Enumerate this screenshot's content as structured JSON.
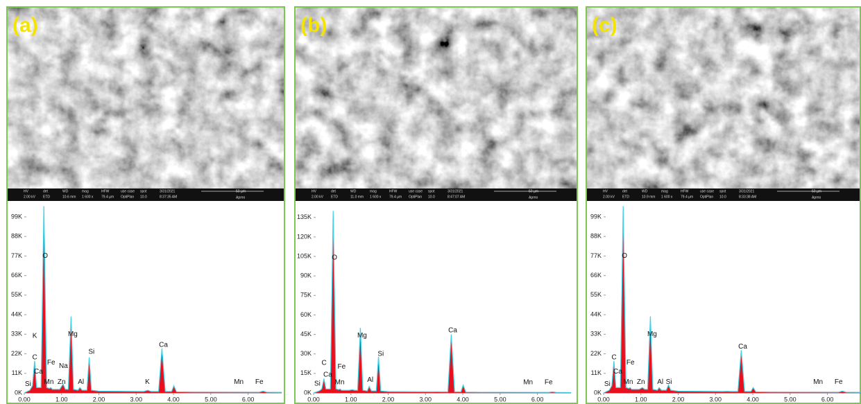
{
  "panels": [
    {
      "label": "(a)",
      "info": [
        "HV",
        "2.00 kV",
        "det",
        "ETD",
        "WD",
        "10.6 mm",
        "mag",
        "1 600 x",
        "HFW",
        "79.4 µm",
        "use case",
        "OptiPlan",
        "spot",
        "10.0",
        "3/31/2021",
        "8:37:35 AM",
        "50 µm",
        "Apreo"
      ]
    },
    {
      "label": "(b)",
      "info": [
        "HV",
        "2.00 kV",
        "det",
        "ETD",
        "WD",
        "11.0 mm",
        "mag",
        "1 600 x",
        "HFW",
        "79.4 µm",
        "use case",
        "OptiPlan",
        "spot",
        "10.0",
        "3/31/2021",
        "8:47:07 AM",
        "50 µm",
        "Apreo"
      ]
    },
    {
      "label": "(c)",
      "info": [
        "HV",
        "2.00 kV",
        "det",
        "ETD",
        "WD",
        "10.9 mm",
        "mag",
        "1 600 x",
        "HFW",
        "79.4 µm",
        "use case",
        "OptiPlan",
        "spot",
        "10.0",
        "3/31/2021",
        "8:33:38 AM",
        "50 µm",
        "Apreo"
      ]
    }
  ],
  "chart_data": [
    {
      "type": "line",
      "fill_color": "#e8101c",
      "line_color": "#3fd0e8",
      "xlim": [
        0,
        6.9
      ],
      "ylim": [
        0,
        106000
      ],
      "xticks": [
        {
          "value": 0,
          "label": "0.00"
        },
        {
          "value": 1,
          "label": "1.00"
        },
        {
          "value": 2,
          "label": "2.00"
        },
        {
          "value": 3,
          "label": "3.00"
        },
        {
          "value": 4,
          "label": "4.00"
        },
        {
          "value": 5,
          "label": "5.00"
        },
        {
          "value": 6,
          "label": "6.00"
        }
      ],
      "yticks": [
        {
          "value": 0,
          "label": "0K"
        },
        {
          "value": 11000,
          "label": "11K"
        },
        {
          "value": 22000,
          "label": "22K"
        },
        {
          "value": 33000,
          "label": "33K"
        },
        {
          "value": 44000,
          "label": "44K"
        },
        {
          "value": 55000,
          "label": "55K"
        },
        {
          "value": 66000,
          "label": "66K"
        },
        {
          "value": 77000,
          "label": "77K"
        },
        {
          "value": 88000,
          "label": "88K"
        },
        {
          "value": 99000,
          "label": "99K"
        }
      ],
      "x": [
        0.0,
        0.15,
        0.22,
        0.277,
        0.33,
        0.45,
        0.525,
        0.6,
        0.68,
        0.71,
        0.75,
        0.95,
        1.04,
        1.1,
        1.18,
        1.254,
        1.32,
        1.44,
        1.49,
        1.55,
        1.68,
        1.74,
        1.8,
        2.0,
        3.2,
        3.31,
        3.4,
        3.6,
        3.69,
        3.78,
        3.95,
        4.01,
        4.08,
        4.5,
        6.3,
        6.4,
        6.5,
        6.9
      ],
      "series": [
        {
          "values": [
            0,
            1500,
            4000,
            17000,
            3000,
            3000,
            90000,
            3000,
            2500,
            3000,
            2000,
            2000,
            5000,
            2000,
            2000,
            36000,
            2000,
            1500,
            3000,
            1500,
            1500,
            19000,
            1500,
            1000,
            800,
            1500,
            800,
            800,
            24000,
            800,
            800,
            4000,
            600,
            500,
            400,
            1000,
            400,
            300
          ]
        },
        {
          "values": [
            0,
            1500,
            4000,
            18000,
            3000,
            3000,
            105000,
            3000,
            2500,
            3000,
            2000,
            2000,
            5000,
            2000,
            2000,
            43000,
            2000,
            1500,
            3000,
            1500,
            1500,
            20000,
            1500,
            1000,
            800,
            1500,
            800,
            800,
            25000,
            800,
            800,
            4000,
            600,
            500,
            400,
            1000,
            400,
            300
          ]
        }
      ],
      "annotations": [
        {
          "text": "Si",
          "x": 0.1,
          "y": 5000
        },
        {
          "text": "C",
          "x": 0.28,
          "y": 20000
        },
        {
          "text": "K",
          "x": 0.28,
          "y": 32000
        },
        {
          "text": "Ca",
          "x": 0.38,
          "y": 12000
        },
        {
          "text": "O",
          "x": 0.56,
          "y": 77000
        },
        {
          "text": "Fe",
          "x": 0.72,
          "y": 17000
        },
        {
          "text": "Mn",
          "x": 0.66,
          "y": 6000
        },
        {
          "text": "Na",
          "x": 1.05,
          "y": 15000
        },
        {
          "text": "Zn",
          "x": 1.0,
          "y": 6000
        },
        {
          "text": "Mg",
          "x": 1.3,
          "y": 33000
        },
        {
          "text": "Al",
          "x": 1.52,
          "y": 6000
        },
        {
          "text": "Si",
          "x": 1.8,
          "y": 23000
        },
        {
          "text": "K",
          "x": 3.3,
          "y": 6000
        },
        {
          "text": "Ca",
          "x": 3.73,
          "y": 27000
        },
        {
          "text": "Mn",
          "x": 5.75,
          "y": 6000
        },
        {
          "text": "Fe",
          "x": 6.3,
          "y": 6000
        }
      ]
    },
    {
      "type": "line",
      "fill_color": "#e8101c",
      "line_color": "#3fd0e8",
      "xlim": [
        0,
        6.9
      ],
      "ylim": [
        0,
        145000
      ],
      "xticks": [
        {
          "value": 0,
          "label": "0.00"
        },
        {
          "value": 1,
          "label": "1.00"
        },
        {
          "value": 2,
          "label": "2.00"
        },
        {
          "value": 3,
          "label": "3.00"
        },
        {
          "value": 4,
          "label": "4.00"
        },
        {
          "value": 5,
          "label": "5.00"
        },
        {
          "value": 6,
          "label": "6.00"
        }
      ],
      "yticks": [
        {
          "value": 0,
          "label": "0K"
        },
        {
          "value": 15000,
          "label": "15K"
        },
        {
          "value": 30000,
          "label": "30K"
        },
        {
          "value": 45000,
          "label": "45K"
        },
        {
          "value": 60000,
          "label": "60K"
        },
        {
          "value": 75000,
          "label": "75K"
        },
        {
          "value": 90000,
          "label": "90K"
        },
        {
          "value": 105000,
          "label": "105K"
        },
        {
          "value": 120000,
          "label": "120K"
        },
        {
          "value": 135000,
          "label": "135K"
        }
      ],
      "x": [
        0.0,
        0.15,
        0.22,
        0.277,
        0.33,
        0.45,
        0.525,
        0.6,
        0.68,
        0.71,
        0.75,
        0.95,
        1.04,
        1.1,
        1.18,
        1.254,
        1.32,
        1.44,
        1.49,
        1.55,
        1.68,
        1.74,
        1.8,
        2.0,
        3.2,
        3.31,
        3.4,
        3.6,
        3.69,
        3.78,
        3.95,
        4.01,
        4.08,
        4.5,
        6.3,
        6.4,
        6.5,
        6.9
      ],
      "series": [
        {
          "values": [
            0,
            1500,
            3000,
            10000,
            3000,
            3000,
            120000,
            3000,
            2500,
            3000,
            2000,
            2000,
            2500,
            2000,
            2000,
            48000,
            2000,
            1500,
            5000,
            1500,
            1500,
            27000,
            1500,
            1000,
            800,
            900,
            800,
            800,
            43000,
            800,
            800,
            6000,
            600,
            500,
            400,
            800,
            400,
            300
          ]
        },
        {
          "values": [
            0,
            1500,
            3000,
            11000,
            3000,
            3000,
            140000,
            3000,
            2500,
            3000,
            2000,
            2000,
            2500,
            2000,
            2000,
            50000,
            2000,
            1500,
            5000,
            1500,
            1500,
            28000,
            1500,
            1000,
            800,
            900,
            800,
            800,
            45000,
            800,
            800,
            6000,
            600,
            500,
            400,
            800,
            400,
            300
          ]
        }
      ],
      "annotations": [
        {
          "text": "Si",
          "x": 0.1,
          "y": 7000
        },
        {
          "text": "C",
          "x": 0.28,
          "y": 23000
        },
        {
          "text": "Ca",
          "x": 0.38,
          "y": 14000
        },
        {
          "text": "O",
          "x": 0.56,
          "y": 104000
        },
        {
          "text": "Fe",
          "x": 0.75,
          "y": 20000
        },
        {
          "text": "Mn",
          "x": 0.7,
          "y": 8000
        },
        {
          "text": "Mg",
          "x": 1.3,
          "y": 44000
        },
        {
          "text": "Al",
          "x": 1.52,
          "y": 10000
        },
        {
          "text": "Si",
          "x": 1.8,
          "y": 30000
        },
        {
          "text": "Ca",
          "x": 3.73,
          "y": 48000
        },
        {
          "text": "Mn",
          "x": 5.75,
          "y": 8000
        },
        {
          "text": "Fe",
          "x": 6.3,
          "y": 8000
        }
      ]
    },
    {
      "type": "line",
      "fill_color": "#e8101c",
      "line_color": "#3fd0e8",
      "xlim": [
        0,
        6.9
      ],
      "ylim": [
        0,
        106000
      ],
      "xticks": [
        {
          "value": 0,
          "label": "0.00"
        },
        {
          "value": 1,
          "label": "1.00"
        },
        {
          "value": 2,
          "label": "2.00"
        },
        {
          "value": 3,
          "label": "3.00"
        },
        {
          "value": 4,
          "label": "4.00"
        },
        {
          "value": 5,
          "label": "5.00"
        },
        {
          "value": 6,
          "label": "6.00"
        }
      ],
      "yticks": [
        {
          "value": 0,
          "label": "0K"
        },
        {
          "value": 11000,
          "label": "11K"
        },
        {
          "value": 22000,
          "label": "22K"
        },
        {
          "value": 33000,
          "label": "33K"
        },
        {
          "value": 44000,
          "label": "44K"
        },
        {
          "value": 55000,
          "label": "55K"
        },
        {
          "value": 66000,
          "label": "66K"
        },
        {
          "value": 77000,
          "label": "77K"
        },
        {
          "value": 88000,
          "label": "88K"
        },
        {
          "value": 99000,
          "label": "99K"
        }
      ],
      "x": [
        0.0,
        0.15,
        0.22,
        0.277,
        0.33,
        0.45,
        0.525,
        0.6,
        0.68,
        0.71,
        0.75,
        0.95,
        1.04,
        1.1,
        1.18,
        1.254,
        1.32,
        1.44,
        1.49,
        1.55,
        1.68,
        1.74,
        1.8,
        2.0,
        3.2,
        3.31,
        3.4,
        3.6,
        3.69,
        3.78,
        3.95,
        4.01,
        4.08,
        4.5,
        6.3,
        6.4,
        6.5,
        6.9
      ],
      "series": [
        {
          "values": [
            0,
            1500,
            4000,
            17000,
            3000,
            3000,
            90000,
            3000,
            2500,
            3000,
            2000,
            2000,
            3000,
            2000,
            2000,
            36000,
            2000,
            1500,
            3000,
            1500,
            1500,
            4000,
            1500,
            1000,
            800,
            900,
            800,
            800,
            23000,
            800,
            800,
            3000,
            600,
            500,
            400,
            1000,
            400,
            300
          ]
        },
        {
          "values": [
            0,
            1500,
            4000,
            18000,
            3000,
            3000,
            105000,
            3000,
            2500,
            3000,
            2000,
            2000,
            3000,
            2000,
            2000,
            43000,
            2000,
            1500,
            3000,
            1500,
            1500,
            4500,
            1500,
            1000,
            800,
            900,
            800,
            800,
            24000,
            800,
            800,
            3000,
            600,
            500,
            400,
            1000,
            400,
            300
          ]
        }
      ],
      "annotations": [
        {
          "text": "Si",
          "x": 0.1,
          "y": 5000
        },
        {
          "text": "C",
          "x": 0.28,
          "y": 20000
        },
        {
          "text": "Ca",
          "x": 0.38,
          "y": 12000
        },
        {
          "text": "O",
          "x": 0.56,
          "y": 77000
        },
        {
          "text": "Fe",
          "x": 0.72,
          "y": 17000
        },
        {
          "text": "Mn",
          "x": 0.66,
          "y": 6000
        },
        {
          "text": "Zn",
          "x": 1.0,
          "y": 6000
        },
        {
          "text": "Mg",
          "x": 1.3,
          "y": 33000
        },
        {
          "text": "Al",
          "x": 1.52,
          "y": 6000
        },
        {
          "text": "Si",
          "x": 1.75,
          "y": 6000
        },
        {
          "text": "Ca",
          "x": 3.73,
          "y": 26000
        },
        {
          "text": "Mn",
          "x": 5.75,
          "y": 6000
        },
        {
          "text": "Fe",
          "x": 6.3,
          "y": 6000
        }
      ]
    }
  ]
}
